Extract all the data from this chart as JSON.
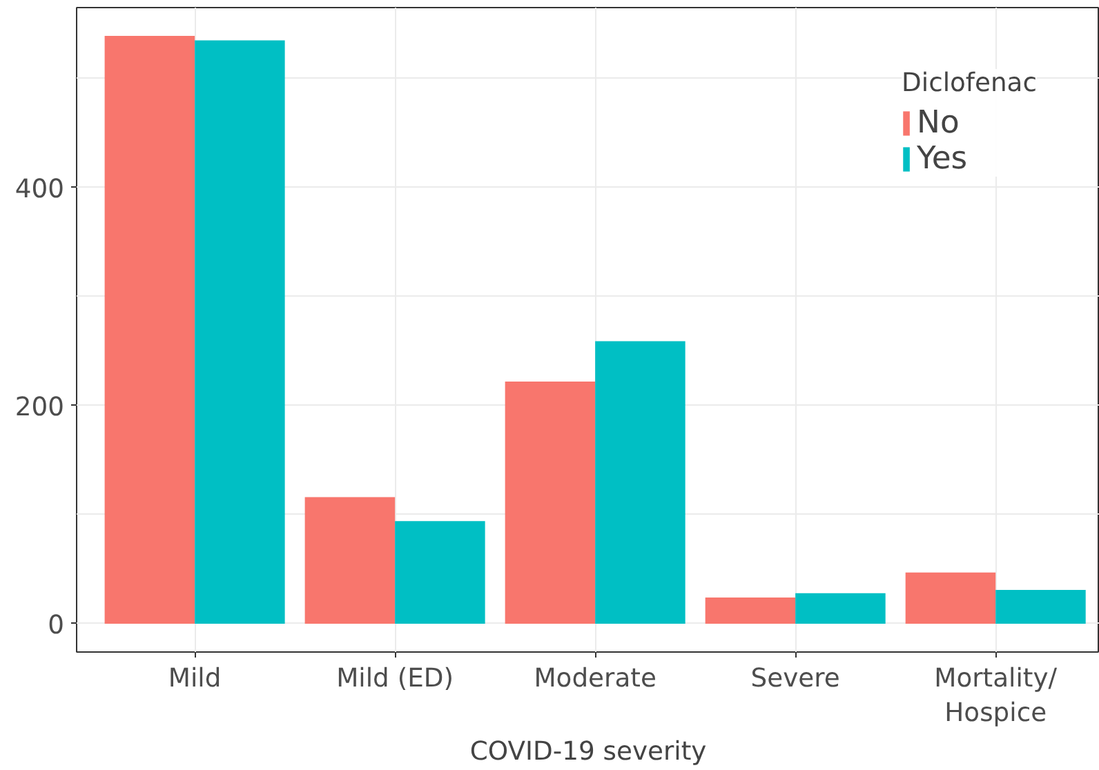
{
  "chart_data": {
    "type": "bar",
    "xlabel": "COVID-19 severity",
    "legend_title": "Diclofenac",
    "categories": [
      "Mild",
      "Mild (ED)",
      "Moderate",
      "Severe",
      "Mortality/\nHospice"
    ],
    "series": [
      {
        "name": "No",
        "color": "#f8766d",
        "values": [
          539,
          116,
          222,
          24,
          47
        ]
      },
      {
        "name": "Yes",
        "color": "#00bfc4",
        "values": [
          535,
          94,
          259,
          28,
          31
        ]
      }
    ],
    "ylim": [
      -26,
      565
    ],
    "yticks": [
      0,
      200,
      400
    ],
    "grid": true,
    "legend": "top right"
  }
}
